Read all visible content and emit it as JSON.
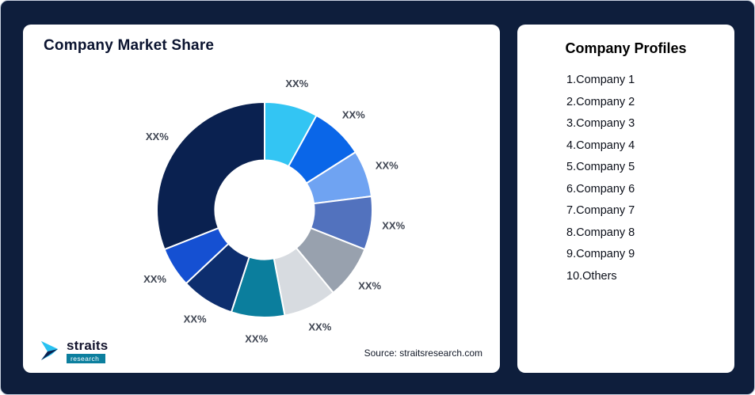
{
  "page": {
    "background_color": "#0E1E3C"
  },
  "left_card": {
    "title": "Company Market Share",
    "source_text": "Source: straitsresearch.com",
    "logo": {
      "brand": "straits",
      "sub_brand": "research",
      "icon": "straits-arrow-icon",
      "icon_colors": {
        "primary": "#29C2F1",
        "secondary": "#0A2150"
      }
    }
  },
  "right_card": {
    "title": "Company Profiles",
    "items": [
      "1.Company 1",
      "2.Company 2",
      "3.Company 3",
      "4.Company 4",
      "5.Company 5",
      "6.Company 6",
      "7.Company 7",
      "8.Company 8",
      "9.Company 9",
      "10.Others"
    ]
  },
  "chart_data": {
    "type": "pie",
    "subtype": "donut",
    "title": "Company Market Share",
    "labels": [
      "Company 1",
      "Company 2",
      "Company 3",
      "Company 4",
      "Company 5",
      "Company 6",
      "Company 7",
      "Company 8",
      "Company 9",
      "Others"
    ],
    "values": [
      8,
      8,
      7,
      8,
      8,
      8,
      8,
      8,
      6,
      31
    ],
    "values_note": "percent shares estimated from arc angles; on-chart labels are placeholders",
    "value_labels": [
      "XX%",
      "XX%",
      "XX%",
      "XX%",
      "XX%",
      "XX%",
      "XX%",
      "XX%",
      "XX%",
      "XX%"
    ],
    "colors": [
      "#33C5F3",
      "#0A66E8",
      "#6FA3F2",
      "#5272BE",
      "#98A1AE",
      "#D7DBE0",
      "#0B7E9D",
      "#0D2E6E",
      "#1550D2",
      "#0A2150"
    ],
    "start_angle_deg": 0,
    "direction": "clockwise",
    "inner_radius_ratio": 0.46,
    "slice_gap_color": "#FFFFFF",
    "label_color": "#3F4552",
    "legend": "none"
  }
}
